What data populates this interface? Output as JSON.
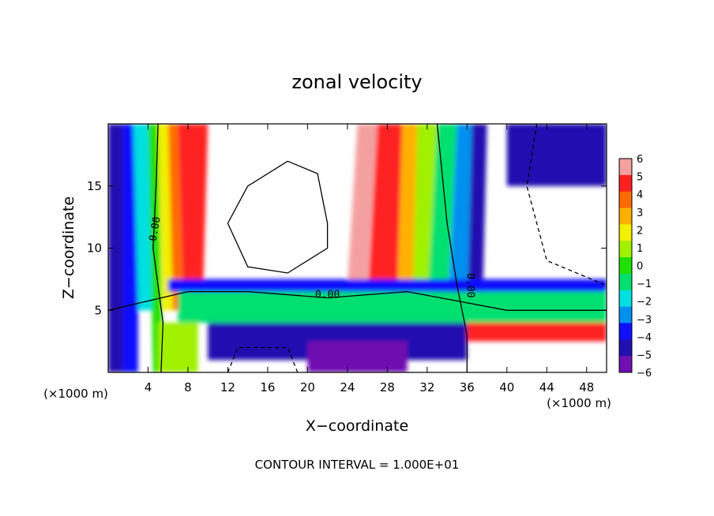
{
  "chart_data": {
    "type": "heatmap",
    "title": "zonal velocity",
    "xlabel": "X−coordinate",
    "ylabel": "Z−coordinate",
    "x_unit_left": "(×1000 m)",
    "x_unit_right": "(×1000 m)",
    "xlim": [
      0,
      50
    ],
    "ylim": [
      0,
      20
    ],
    "x_ticks": [
      4,
      8,
      12,
      16,
      20,
      24,
      28,
      32,
      36,
      40,
      44,
      48
    ],
    "y_ticks": [
      5,
      10,
      15
    ],
    "colorbar": {
      "ticks": [
        "6",
        "5",
        "4",
        "3",
        "2",
        "1",
        "0",
        "−1",
        "−2",
        "−3",
        "−4",
        "−5",
        "−6"
      ],
      "range": [
        -6,
        6
      ],
      "colors": [
        "#f4a0a0",
        "#ff2020",
        "#ff6a00",
        "#ffb000",
        "#f0f000",
        "#a0f000",
        "#20e000",
        "#00e070",
        "#00e0e0",
        "#0090f0",
        "#1010ff",
        "#2010b0",
        "#7010b0"
      ]
    },
    "contour_labels": [
      "0.00",
      "0.00",
      "0.00"
    ],
    "footer": "CONTOUR INTERVAL = 1.000E+01"
  }
}
